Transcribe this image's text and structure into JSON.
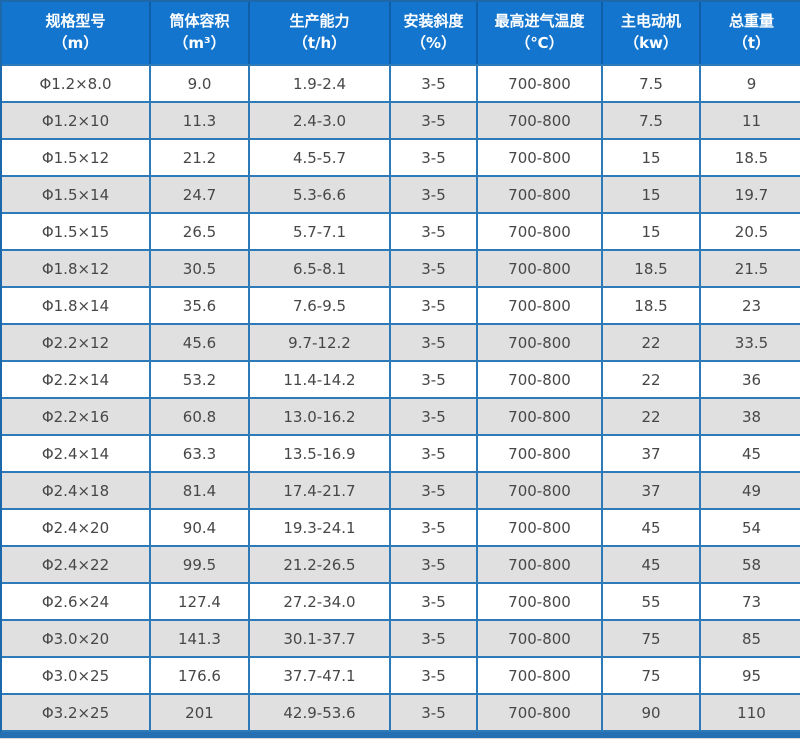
{
  "table": {
    "columns": [
      {
        "label": "规格型号",
        "unit": "（m）"
      },
      {
        "label": "筒体容积",
        "unit": "（m³）"
      },
      {
        "label": "生产能力",
        "unit": "（t/h）"
      },
      {
        "label": "安装斜度",
        "unit": "（%）"
      },
      {
        "label": "最高进气温度",
        "unit": "（℃）"
      },
      {
        "label": "主电动机",
        "unit": "（kw）"
      },
      {
        "label": "总重量",
        "unit": "（t）"
      }
    ],
    "rows": [
      [
        "Φ1.2×8.0",
        "9.0",
        "1.9-2.4",
        "3-5",
        "700-800",
        "7.5",
        "9"
      ],
      [
        "Φ1.2×10",
        "11.3",
        "2.4-3.0",
        "3-5",
        "700-800",
        "7.5",
        "11"
      ],
      [
        "Φ1.5×12",
        "21.2",
        "4.5-5.7",
        "3-5",
        "700-800",
        "15",
        "18.5"
      ],
      [
        "Φ1.5×14",
        "24.7",
        "5.3-6.6",
        "3-5",
        "700-800",
        "15",
        "19.7"
      ],
      [
        "Φ1.5×15",
        "26.5",
        "5.7-7.1",
        "3-5",
        "700-800",
        "15",
        "20.5"
      ],
      [
        "Φ1.8×12",
        "30.5",
        "6.5-8.1",
        "3-5",
        "700-800",
        "18.5",
        "21.5"
      ],
      [
        "Φ1.8×14",
        "35.6",
        "7.6-9.5",
        "3-5",
        "700-800",
        "18.5",
        "23"
      ],
      [
        "Φ2.2×12",
        "45.6",
        "9.7-12.2",
        "3-5",
        "700-800",
        "22",
        "33.5"
      ],
      [
        "Φ2.2×14",
        "53.2",
        "11.4-14.2",
        "3-5",
        "700-800",
        "22",
        "36"
      ],
      [
        "Φ2.2×16",
        "60.8",
        "13.0-16.2",
        "3-5",
        "700-800",
        "22",
        "38"
      ],
      [
        "Φ2.4×14",
        "63.3",
        "13.5-16.9",
        "3-5",
        "700-800",
        "37",
        "45"
      ],
      [
        "Φ2.4×18",
        "81.4",
        "17.4-21.7",
        "3-5",
        "700-800",
        "37",
        "49"
      ],
      [
        "Φ2.4×20",
        "90.4",
        "19.3-24.1",
        "3-5",
        "700-800",
        "45",
        "54"
      ],
      [
        "Φ2.4×22",
        "99.5",
        "21.2-26.5",
        "3-5",
        "700-800",
        "45",
        "58"
      ],
      [
        "Φ2.6×24",
        "127.4",
        "27.2-34.0",
        "3-5",
        "700-800",
        "55",
        "73"
      ],
      [
        "Φ3.0×20",
        "141.3",
        "30.1-37.7",
        "3-5",
        "700-800",
        "75",
        "85"
      ],
      [
        "Φ3.0×25",
        "176.6",
        "37.7-47.1",
        "3-5",
        "700-800",
        "75",
        "95"
      ],
      [
        "Φ3.2×25",
        "201",
        "42.9-53.6",
        "3-5",
        "700-800",
        "90",
        "110"
      ]
    ],
    "colors": {
      "header_bg": "#1375ce",
      "header_divider": "#0e5fa8",
      "header_text": "#ffffff",
      "grid": "#2e79b8",
      "outer": "#1d67ab",
      "row_bg": "#ffffff",
      "row_alt": "#e0e0e0",
      "text": "#474747",
      "bottom_bar": "#2470b2"
    }
  }
}
